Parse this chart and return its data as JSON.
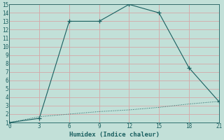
{
  "xlabel": "Humidex (Indice chaleur)",
  "bg_color": "#c2e0d8",
  "grid_color": "#d4a8a8",
  "line_color": "#1a6060",
  "xlim": [
    0,
    21
  ],
  "ylim": [
    1,
    15
  ],
  "xticks": [
    0,
    3,
    6,
    9,
    12,
    15,
    18,
    21
  ],
  "yticks": [
    1,
    2,
    3,
    4,
    5,
    6,
    7,
    8,
    9,
    10,
    11,
    12,
    13,
    14,
    15
  ],
  "line1_x": [
    0,
    3,
    6,
    9,
    12,
    15,
    18,
    21
  ],
  "line1_y": [
    1,
    1.5,
    13,
    13,
    15,
    14,
    7.5,
    3.5
  ],
  "line2_x": [
    0,
    3,
    6,
    9,
    12,
    15,
    18,
    21
  ],
  "line2_y": [
    1,
    1.7,
    2.0,
    2.3,
    2.5,
    2.8,
    3.2,
    3.5
  ]
}
